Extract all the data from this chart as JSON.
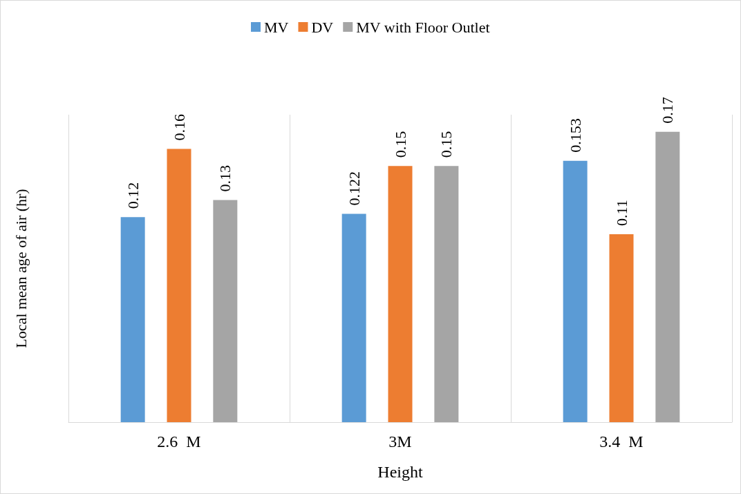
{
  "chart_data": {
    "type": "bar",
    "xlabel": "Height",
    "ylabel": "Local mean age of air (hr)",
    "categories": [
      "2.6  M",
      "3M",
      "3.4  M"
    ],
    "series": [
      {
        "name": "MV",
        "color": "#5b9bd5",
        "values": [
          0.12,
          0.122,
          0.153
        ]
      },
      {
        "name": "DV",
        "color": "#ed7d31",
        "values": [
          0.16,
          0.15,
          0.11
        ]
      },
      {
        "name": "MV with Floor Outlet",
        "color": "#a5a5a5",
        "values": [
          0.13,
          0.15,
          0.17
        ]
      }
    ],
    "ylim": [
      0,
      0.18
    ],
    "data_labels": true,
    "grid": "x",
    "legend": "top",
    "tick_labels": "x"
  }
}
